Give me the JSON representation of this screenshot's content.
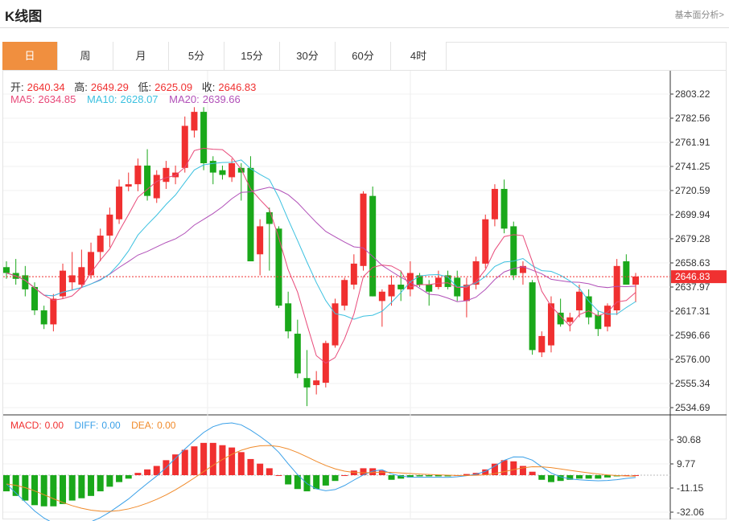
{
  "header": {
    "title": "K线图",
    "basic_link": "基本面分析>"
  },
  "tabs": [
    "日",
    "周",
    "月",
    "5分",
    "15分",
    "30分",
    "60分",
    "4时"
  ],
  "active_tab": 0,
  "ohlc": {
    "open_label": "开:",
    "open": "2640.34",
    "high_label": "高:",
    "high": "2649.29",
    "low_label": "低:",
    "low": "2625.09",
    "close_label": "收:",
    "close": "2646.83"
  },
  "ma": {
    "ma5_label": "MA5:",
    "ma5": "2634.85",
    "ma10_label": "MA10:",
    "ma10": "2628.07",
    "ma20_label": "MA20:",
    "ma20": "2639.66"
  },
  "macd_info": {
    "macd_label": "MACD:",
    "macd": "0.00",
    "diff_label": "DIFF:",
    "diff": "0.00",
    "dea_label": "DEA:",
    "dea": "0.00"
  },
  "current_price_label": "2646.83",
  "colors": {
    "up": "#f03030",
    "down": "#1aa81a",
    "ma5": "#e84a7a",
    "ma10": "#3cc1e0",
    "ma20": "#b150b8",
    "diff": "#3aa0e8",
    "dea": "#f08a2a",
    "active_tab": "#f08f3f"
  },
  "chart_data": {
    "type": "candlestick",
    "price_axis_ticks": [
      "2803.22",
      "2782.56",
      "2761.91",
      "2741.25",
      "2720.59",
      "2699.94",
      "2679.28",
      "2658.63",
      "2637.97",
      "2617.31",
      "2596.66",
      "2576.00",
      "2555.34",
      "2534.69"
    ],
    "price_range": [
      2534.69,
      2803.22
    ],
    "macd_axis_ticks": [
      "30.68",
      "9.77",
      "-11.15",
      "-32.06"
    ],
    "macd_range": [
      -32.06,
      30.68
    ],
    "candles": [
      [
        2655,
        2660,
        2645,
        2650
      ],
      [
        2650,
        2662,
        2640,
        2645
      ],
      [
        2648,
        2656,
        2630,
        2636
      ],
      [
        2638,
        2642,
        2614,
        2618
      ],
      [
        2618,
        2622,
        2602,
        2606
      ],
      [
        2606,
        2632,
        2600,
        2628
      ],
      [
        2630,
        2658,
        2628,
        2652
      ],
      [
        2642,
        2668,
        2635,
        2648
      ],
      [
        2640,
        2670,
        2638,
        2655
      ],
      [
        2648,
        2676,
        2645,
        2668
      ],
      [
        2668,
        2688,
        2660,
        2682
      ],
      [
        2682,
        2706,
        2672,
        2700
      ],
      [
        2696,
        2730,
        2692,
        2724
      ],
      [
        2724,
        2736,
        2720,
        2726
      ],
      [
        2726,
        2748,
        2720,
        2742
      ],
      [
        2742,
        2756,
        2712,
        2716
      ],
      [
        2714,
        2738,
        2710,
        2734
      ],
      [
        2728,
        2746,
        2722,
        2740
      ],
      [
        2732,
        2742,
        2726,
        2736
      ],
      [
        2740,
        2784,
        2736,
        2776
      ],
      [
        2772,
        2792,
        2766,
        2788
      ],
      [
        2788,
        2792,
        2738,
        2744
      ],
      [
        2746,
        2750,
        2726,
        2736
      ],
      [
        2738,
        2742,
        2730,
        2734
      ],
      [
        2732,
        2748,
        2728,
        2744
      ],
      [
        2740,
        2744,
        2712,
        2736
      ],
      [
        2740,
        2750,
        2660,
        2660
      ],
      [
        2666,
        2696,
        2648,
        2690
      ],
      [
        2702,
        2706,
        2652,
        2692
      ],
      [
        2688,
        2690,
        2620,
        2622
      ],
      [
        2624,
        2634,
        2594,
        2600
      ],
      [
        2598,
        2610,
        2560,
        2564
      ],
      [
        2560,
        2584,
        2536,
        2552
      ],
      [
        2554,
        2566,
        2546,
        2558
      ],
      [
        2556,
        2592,
        2552,
        2590
      ],
      [
        2588,
        2628,
        2586,
        2624
      ],
      [
        2622,
        2646,
        2618,
        2644
      ],
      [
        2640,
        2666,
        2636,
        2658
      ],
      [
        2656,
        2720,
        2652,
        2718
      ],
      [
        2716,
        2724,
        2630,
        2630
      ],
      [
        2626,
        2636,
        2604,
        2634
      ],
      [
        2630,
        2648,
        2622,
        2640
      ],
      [
        2640,
        2652,
        2626,
        2636
      ],
      [
        2636,
        2660,
        2630,
        2650
      ],
      [
        2648,
        2650,
        2638,
        2640
      ],
      [
        2640,
        2644,
        2622,
        2634
      ],
      [
        2638,
        2652,
        2636,
        2646
      ],
      [
        2648,
        2652,
        2636,
        2638
      ],
      [
        2646,
        2652,
        2626,
        2630
      ],
      [
        2626,
        2646,
        2612,
        2640
      ],
      [
        2640,
        2664,
        2636,
        2660
      ],
      [
        2658,
        2700,
        2654,
        2696
      ],
      [
        2696,
        2726,
        2690,
        2722
      ],
      [
        2722,
        2730,
        2684,
        2688
      ],
      [
        2690,
        2694,
        2644,
        2648
      ],
      [
        2650,
        2660,
        2640,
        2656
      ],
      [
        2642,
        2644,
        2580,
        2584
      ],
      [
        2582,
        2600,
        2578,
        2596
      ],
      [
        2588,
        2630,
        2582,
        2624
      ],
      [
        2616,
        2628,
        2604,
        2606
      ],
      [
        2608,
        2616,
        2600,
        2612
      ],
      [
        2618,
        2640,
        2612,
        2634
      ],
      [
        2630,
        2636,
        2606,
        2612
      ],
      [
        2614,
        2618,
        2596,
        2602
      ],
      [
        2604,
        2624,
        2600,
        2622
      ],
      [
        2618,
        2662,
        2614,
        2656
      ],
      [
        2660,
        2666,
        2640,
        2640
      ],
      [
        2640,
        2650,
        2625,
        2647
      ]
    ],
    "macd_hist": [
      -14,
      -18,
      -22,
      -26,
      -27,
      -27,
      -25,
      -22,
      -20,
      -18,
      -14,
      -10,
      -6,
      -3,
      2,
      5,
      8,
      13,
      18,
      22,
      25,
      28,
      28,
      26,
      24,
      20,
      14,
      10,
      6,
      0,
      -8,
      -12,
      -14,
      -12,
      -9,
      -5,
      0,
      4,
      6,
      6,
      4,
      -4,
      -3,
      -2,
      -1,
      -1,
      -1,
      -1,
      0,
      1,
      2,
      5,
      10,
      13,
      12,
      8,
      3,
      -4,
      -6,
      -5,
      -4,
      -3,
      -3,
      -3,
      -2,
      -1,
      0,
      0
    ]
  }
}
